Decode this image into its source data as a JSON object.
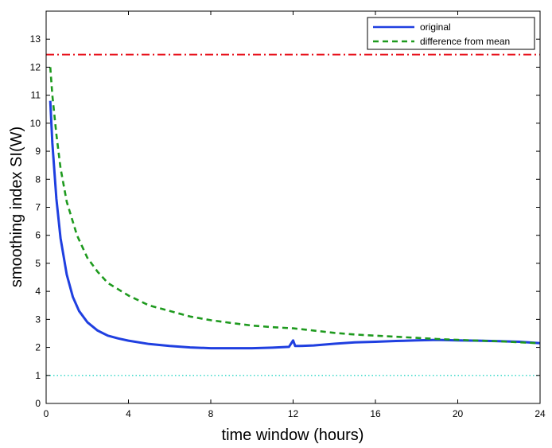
{
  "chart_data": {
    "type": "line",
    "title": "",
    "xlabel": "time window (hours)",
    "ylabel": "smoothing index SI(W)",
    "xlim": [
      0,
      24
    ],
    "ylim": [
      0,
      14
    ],
    "xticks": [
      0,
      4,
      8,
      12,
      16,
      20,
      24
    ],
    "yticks": [
      0,
      1,
      2,
      3,
      4,
      5,
      6,
      7,
      8,
      9,
      10,
      11,
      12,
      13
    ],
    "grid": false,
    "legend_position": "top-right",
    "series": [
      {
        "name": "original",
        "color": "#1f3fe0",
        "style": "solid",
        "x": [
          0.2,
          0.3,
          0.5,
          0.7,
          1.0,
          1.3,
          1.6,
          2.0,
          2.5,
          3.0,
          3.5,
          4.0,
          5.0,
          6.0,
          7.0,
          8.0,
          9.0,
          10.0,
          11.0,
          11.8,
          12.0,
          12.1,
          12.3,
          13.0,
          14.0,
          15.0,
          16.0,
          17.0,
          18.0,
          19.0,
          20.0,
          21.0,
          22.0,
          23.0,
          24.0
        ],
        "y": [
          10.8,
          9.3,
          7.3,
          5.9,
          4.6,
          3.8,
          3.3,
          2.9,
          2.6,
          2.42,
          2.32,
          2.24,
          2.12,
          2.05,
          2.0,
          1.97,
          1.97,
          1.97,
          1.99,
          2.02,
          2.25,
          2.05,
          2.05,
          2.07,
          2.13,
          2.18,
          2.2,
          2.23,
          2.25,
          2.27,
          2.25,
          2.24,
          2.22,
          2.2,
          2.15
        ]
      },
      {
        "name": "difference from mean",
        "color": "#1e9a1e",
        "style": "dashed",
        "x": [
          0.2,
          0.3,
          0.5,
          0.7,
          1.0,
          1.5,
          2.0,
          2.5,
          3.0,
          4.0,
          5.0,
          6.0,
          7.0,
          8.0,
          9.0,
          10.0,
          11.0,
          12.0,
          13.0,
          14.0,
          15.0,
          16.0,
          17.0,
          18.0,
          19.0,
          20.0,
          21.0,
          22.0,
          23.0,
          24.0
        ],
        "y": [
          12.0,
          11.0,
          9.6,
          8.4,
          7.2,
          6.0,
          5.2,
          4.7,
          4.3,
          3.85,
          3.5,
          3.3,
          3.1,
          2.97,
          2.87,
          2.78,
          2.72,
          2.68,
          2.6,
          2.52,
          2.46,
          2.42,
          2.38,
          2.34,
          2.3,
          2.27,
          2.24,
          2.22,
          2.18,
          2.15
        ]
      }
    ],
    "reference_lines": [
      {
        "y": 12.45,
        "color": "#e8141e",
        "style": "dash-dot"
      },
      {
        "y": 1.0,
        "color": "#27d6c4",
        "style": "dotted"
      }
    ]
  }
}
